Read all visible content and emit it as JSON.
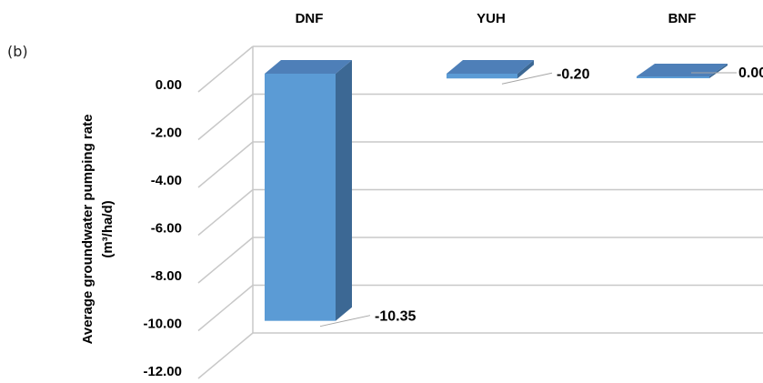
{
  "panel_label": "(b)",
  "chart_data": {
    "type": "bar",
    "categories": [
      "DNF",
      "YUH",
      "BNF"
    ],
    "values": [
      -10.35,
      -0.2,
      0.0
    ],
    "data_labels": [
      "-10.35",
      "-0.20",
      "0.00"
    ],
    "ylabel_line1": "Average groundwater pumping rate",
    "ylabel_line2": "(m³/ha/d)",
    "ylim": [
      -12,
      0
    ],
    "y_ticks": [
      "0.00",
      "-2.00",
      "-4.00",
      "-6.00",
      "-8.00",
      "-10.00",
      "-12.00"
    ],
    "y_tick_values": [
      0,
      -2,
      -4,
      -6,
      -8,
      -10,
      -12
    ],
    "grid": true,
    "colors": {
      "bar_front": "#5b9bd5",
      "bar_side": "#3c6894",
      "bar_top": "#4e7fb8",
      "gridline": "#c8c8c8",
      "leader": "#a6a6a6"
    }
  }
}
